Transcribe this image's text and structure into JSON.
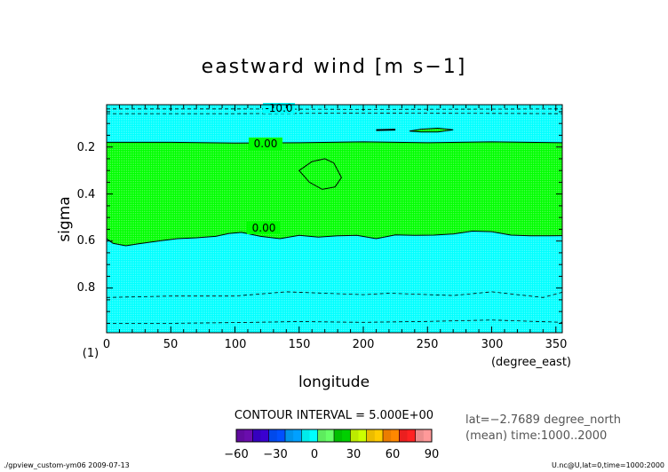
{
  "chart_data": {
    "type": "contour",
    "title": "eastward wind [m s−1]",
    "xlabel": "longitude",
    "ylabel": "sigma",
    "x_units": "(degree_east)",
    "y_units": "(1)",
    "xlim": [
      0,
      355
    ],
    "ylim": [
      0.99,
      0.02
    ],
    "x_ticks": [
      "0",
      "50",
      "100",
      "150",
      "200",
      "250",
      "300",
      "350"
    ],
    "y_ticks": [
      "0.2",
      "0.4",
      "0.6",
      "0.8"
    ],
    "contour_labels": [
      "-10.0",
      "0.00",
      "0.00"
    ],
    "contour_interval": "CONTOUR INTERVAL = 5.000E+00",
    "info_line1": "lat=−2.7689 degree_north",
    "info_line2": "(mean) time:1000..2000",
    "colorbar": {
      "tick_labels": [
        "−60",
        "−30",
        "0",
        "30",
        "60",
        "90"
      ],
      "colors": [
        "#6a0dad",
        "#3a00d0",
        "#0050ff",
        "#00a0ff",
        "#00ffff",
        "#66ff66",
        "#00d000",
        "#ccff00",
        "#ffcc00",
        "#ff8800",
        "#ff2222",
        "#ff9999"
      ]
    },
    "zero_contour_upper": [
      [
        0,
        0.18
      ],
      [
        50,
        0.18
      ],
      [
        100,
        0.183
      ],
      [
        150,
        0.182
      ],
      [
        200,
        0.178
      ],
      [
        250,
        0.182
      ],
      [
        300,
        0.178
      ],
      [
        355,
        0.182
      ]
    ],
    "zero_contour_lower": [
      [
        0,
        0.59
      ],
      [
        5,
        0.61
      ],
      [
        15,
        0.62
      ],
      [
        25,
        0.612
      ],
      [
        40,
        0.6
      ],
      [
        55,
        0.59
      ],
      [
        70,
        0.586
      ],
      [
        85,
        0.58
      ],
      [
        95,
        0.568
      ],
      [
        105,
        0.563
      ],
      [
        120,
        0.58
      ],
      [
        135,
        0.59
      ],
      [
        150,
        0.576
      ],
      [
        165,
        0.583
      ],
      [
        180,
        0.578
      ],
      [
        195,
        0.576
      ],
      [
        210,
        0.59
      ],
      [
        225,
        0.574
      ],
      [
        240,
        0.576
      ],
      [
        255,
        0.575
      ],
      [
        270,
        0.57
      ],
      [
        285,
        0.558
      ],
      [
        300,
        0.56
      ],
      [
        315,
        0.575
      ],
      [
        330,
        0.578
      ],
      [
        345,
        0.578
      ],
      [
        355,
        0.577
      ]
    ],
    "zero_closed_loop": [
      [
        150,
        0.3
      ],
      [
        160,
        0.262
      ],
      [
        170,
        0.25
      ],
      [
        177,
        0.268
      ],
      [
        183,
        0.33
      ],
      [
        178,
        0.37
      ],
      [
        168,
        0.38
      ],
      [
        158,
        0.35
      ]
    ],
    "zero_closed_upper": [
      [
        236,
        0.132
      ],
      [
        245,
        0.124
      ],
      [
        258,
        0.12
      ],
      [
        270,
        0.127
      ],
      [
        258,
        0.136
      ],
      [
        245,
        0.136
      ]
    ],
    "neg_small_loop": [
      [
        210,
        0.128
      ],
      [
        225,
        0.126
      ]
    ],
    "neg10_lines": [
      [
        [
          0,
          0.038
        ],
        [
          100,
          0.038
        ],
        [
          200,
          0.04
        ],
        [
          300,
          0.039
        ],
        [
          355,
          0.038
        ]
      ],
      [
        [
          0,
          0.058
        ],
        [
          100,
          0.058
        ],
        [
          200,
          0.056
        ],
        [
          300,
          0.057
        ],
        [
          355,
          0.058
        ]
      ]
    ],
    "neg5_line_a": [
      [
        0,
        0.84
      ],
      [
        50,
        0.834
      ],
      [
        100,
        0.834
      ],
      [
        140,
        0.816
      ],
      [
        200,
        0.828
      ],
      [
        220,
        0.822
      ],
      [
        270,
        0.832
      ],
      [
        300,
        0.816
      ],
      [
        340,
        0.84
      ],
      [
        355,
        0.818
      ]
    ],
    "neg5_line_b": [
      [
        0,
        0.95
      ],
      [
        50,
        0.95
      ],
      [
        100,
        0.947
      ],
      [
        150,
        0.943
      ],
      [
        200,
        0.946
      ],
      [
        250,
        0.942
      ],
      [
        300,
        0.936
      ],
      [
        355,
        0.946
      ]
    ]
  },
  "footer": {
    "left": "./gpview_custom-ym06  2009-07-13",
    "right": "U.nc@U,lat=0,time=1000:2000"
  }
}
